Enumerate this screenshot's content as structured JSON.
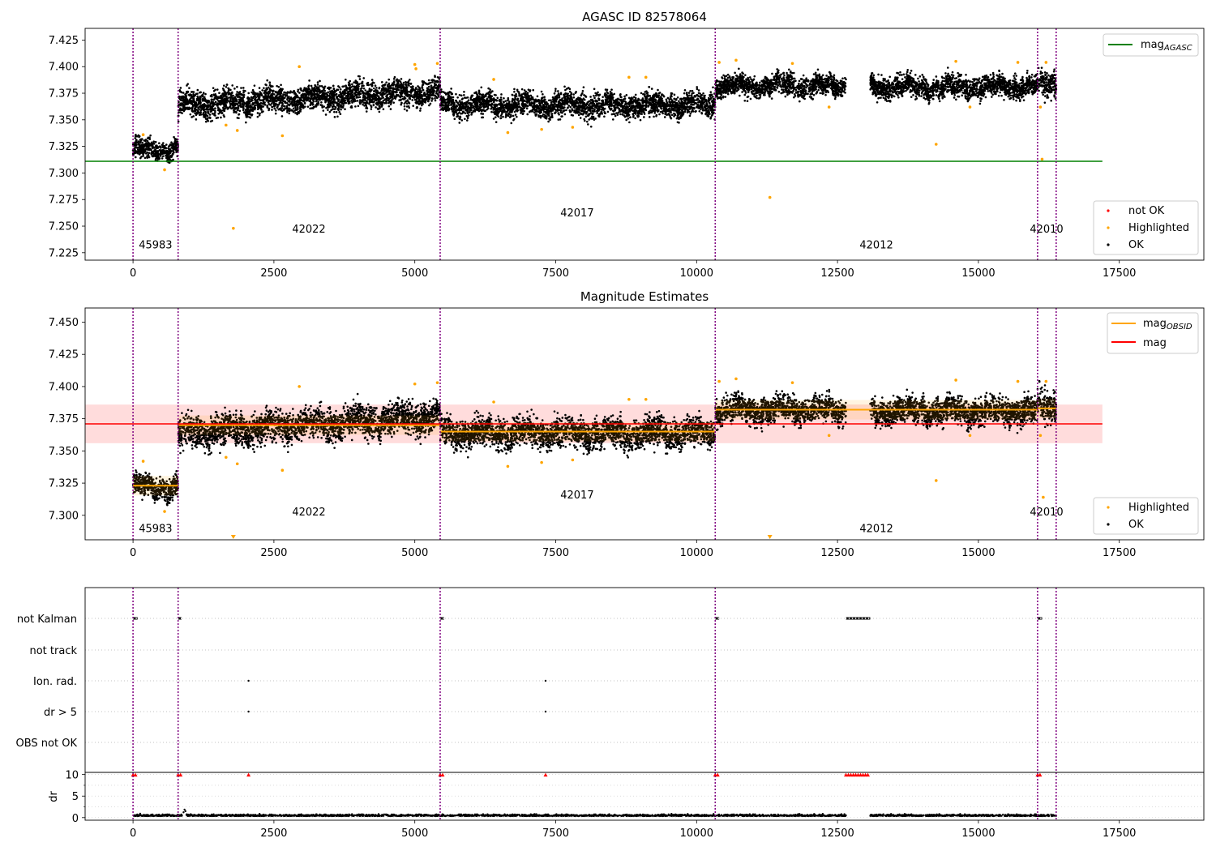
{
  "colors": {
    "agasc_line": "#008000",
    "mag_line": "#ff0000",
    "mag_band": "#ffc0c0",
    "obsid_line": "#ffa500",
    "ok": "#000000",
    "highlighted": "#ffa500",
    "not_ok": "#ff0000",
    "obsid_divider": "#800080"
  },
  "chart_data": [
    {
      "type": "scatter",
      "title": "AGASC ID 82578064",
      "xlim": [
        -850,
        19000
      ],
      "ylim": [
        7.218,
        7.436
      ],
      "x_ticks": [
        0,
        2500,
        5000,
        7500,
        10000,
        12500,
        15000,
        17500
      ],
      "y_ticks": [
        7.225,
        7.25,
        7.275,
        7.3,
        7.325,
        7.35,
        7.375,
        7.4,
        7.425
      ],
      "y_tick_labels": [
        "7.225",
        "7.250",
        "7.275",
        "7.300",
        "7.325",
        "7.350",
        "7.375",
        "7.400",
        "7.425"
      ],
      "grid": false,
      "mag_agasc": 7.311,
      "mag_agasc_x_range": [
        -850,
        17200
      ],
      "obsid_boundaries": [
        0,
        800,
        5450,
        10330,
        16050,
        16380
      ],
      "obsid_labels": [
        {
          "text": "45983",
          "x": 400,
          "y": 7.229
        },
        {
          "text": "42022",
          "x": 3120,
          "y": 7.244
        },
        {
          "text": "42017",
          "x": 7880,
          "y": 7.259
        },
        {
          "text": "42012",
          "x": 13190,
          "y": 7.229
        },
        {
          "text": "42010",
          "x": 16210,
          "y": 7.244
        }
      ],
      "segments": [
        {
          "x": [
            0,
            800
          ],
          "mean": 7.322,
          "spread": 0.008
        },
        {
          "x": [
            800,
            5450
          ],
          "mean_start": 7.364,
          "mean_end": 7.377,
          "spread": 0.011
        },
        {
          "x": [
            5450,
            10330
          ],
          "mean": 7.364,
          "spread": 0.01
        },
        {
          "x": [
            10330,
            12650
          ],
          "mean": 7.382,
          "spread": 0.009
        },
        {
          "x": [
            13080,
            16050
          ],
          "mean": 7.381,
          "spread": 0.009
        },
        {
          "x": [
            16050,
            16380
          ],
          "mean": 7.384,
          "spread": 0.011
        }
      ],
      "highlighted_points": [
        [
          180,
          7.336
        ],
        [
          560,
          7.303
        ],
        [
          1780,
          7.248
        ],
        [
          2650,
          7.335
        ],
        [
          1650,
          7.345
        ],
        [
          1850,
          7.34
        ],
        [
          2950,
          7.4
        ],
        [
          5000,
          7.402
        ],
        [
          5020,
          7.398
        ],
        [
          5400,
          7.403
        ],
        [
          6400,
          7.388
        ],
        [
          6650,
          7.338
        ],
        [
          7250,
          7.341
        ],
        [
          7800,
          7.343
        ],
        [
          8800,
          7.39
        ],
        [
          9100,
          7.39
        ],
        [
          10400,
          7.404
        ],
        [
          10700,
          7.406
        ],
        [
          11300,
          7.277
        ],
        [
          11700,
          7.403
        ],
        [
          12350,
          7.362
        ],
        [
          14250,
          7.327
        ],
        [
          14600,
          7.405
        ],
        [
          14850,
          7.362
        ],
        [
          15700,
          7.404
        ],
        [
          16100,
          7.362
        ],
        [
          16130,
          7.313
        ],
        [
          16200,
          7.404
        ]
      ],
      "legend_top": [
        {
          "label": "mag",
          "subscript": "AGASC"
        }
      ],
      "legend_bottom": [
        {
          "label": "not OK"
        },
        {
          "label": "Highlighted"
        },
        {
          "label": "OK"
        }
      ]
    },
    {
      "type": "scatter",
      "title": "Magnitude Estimates",
      "xlim": [
        -850,
        19000
      ],
      "ylim": [
        7.281,
        7.461
      ],
      "x_ticks": [
        0,
        2500,
        5000,
        7500,
        10000,
        12500,
        15000,
        17500
      ],
      "y_ticks": [
        7.3,
        7.325,
        7.35,
        7.375,
        7.4,
        7.425,
        7.45
      ],
      "y_tick_labels": [
        "7.300",
        "7.325",
        "7.350",
        "7.375",
        "7.400",
        "7.425",
        "7.450"
      ],
      "grid": false,
      "mag": 7.371,
      "mag_band": [
        7.356,
        7.386
      ],
      "mag_x_range": [
        -850,
        17200
      ],
      "obsid_mags": [
        {
          "x": [
            0,
            800
          ],
          "mag": 7.323
        },
        {
          "x": [
            800,
            5450
          ],
          "mag": 7.37
        },
        {
          "x": [
            5450,
            10330
          ],
          "mag": 7.365
        },
        {
          "x": [
            10330,
            16050
          ],
          "mag": 7.382
        },
        {
          "x": [
            16050,
            16380
          ],
          "mag": 7.383
        }
      ],
      "obsid_boundaries": [
        0,
        800,
        5450,
        10330,
        16050,
        16380
      ],
      "obsid_labels": [
        {
          "text": "45983",
          "x": 400,
          "y": 7.287
        },
        {
          "text": "42022",
          "x": 3120,
          "y": 7.3
        },
        {
          "text": "42017",
          "x": 7880,
          "y": 7.313
        },
        {
          "text": "42012",
          "x": 13190,
          "y": 7.287
        },
        {
          "text": "42010",
          "x": 16210,
          "y": 7.3
        }
      ],
      "highlighted_points": [
        [
          180,
          7.342
        ],
        [
          560,
          7.303
        ],
        [
          1650,
          7.345
        ],
        [
          1850,
          7.34
        ],
        [
          2650,
          7.335
        ],
        [
          2950,
          7.4
        ],
        [
          5000,
          7.402
        ],
        [
          5400,
          7.403
        ],
        [
          6400,
          7.388
        ],
        [
          6650,
          7.338
        ],
        [
          7250,
          7.341
        ],
        [
          7800,
          7.343
        ],
        [
          8800,
          7.39
        ],
        [
          9100,
          7.39
        ],
        [
          10400,
          7.404
        ],
        [
          10700,
          7.406
        ],
        [
          11700,
          7.403
        ],
        [
          12350,
          7.362
        ],
        [
          14250,
          7.327
        ],
        [
          14600,
          7.405
        ],
        [
          14850,
          7.362
        ],
        [
          15700,
          7.404
        ],
        [
          16100,
          7.362
        ],
        [
          16150,
          7.314
        ],
        [
          16200,
          7.404
        ]
      ],
      "off_scale_markers_x": [
        1780,
        11300
      ],
      "legend_top": [
        {
          "label": "mag",
          "subscript": "OBSID"
        },
        {
          "label": "mag"
        }
      ],
      "legend_bottom": [
        {
          "label": "Highlighted"
        },
        {
          "label": "OK"
        }
      ]
    },
    {
      "type": "scatter",
      "title": "",
      "xlim": [
        -850,
        19000
      ],
      "flag_rows": [
        "not Kalman",
        "not track",
        "Ion. rad.",
        "dr > 5",
        "OBS not OK"
      ],
      "flag_points": {
        "not Kalman": [
          [
            0,
            80
          ],
          [
            800,
            860
          ],
          [
            5450,
            5520
          ],
          [
            10330,
            10400
          ],
          [
            12650,
            13080
          ],
          [
            16050,
            16130
          ]
        ],
        "not track": [],
        "Ion. rad.": [
          [
            2050,
            2060
          ],
          [
            7320,
            7330
          ]
        ],
        "dr > 5": [
          [
            2050,
            2060
          ],
          [
            7320,
            7330
          ]
        ],
        "OBS not OK": []
      },
      "ylabel": "dr",
      "dr_ylim": [
        -0.6,
        10.5
      ],
      "dr_ticks": [
        0,
        5,
        10
      ],
      "dr_capped_at": 10,
      "dr_capped_x": [
        [
          0,
          80
        ],
        [
          800,
          860
        ],
        [
          2050,
          2060
        ],
        [
          5450,
          5520
        ],
        [
          7320,
          7330
        ],
        [
          10330,
          10400
        ],
        [
          12650,
          13080
        ],
        [
          16050,
          16130
        ]
      ],
      "x_ticks": [
        0,
        2500,
        5000,
        7500,
        10000,
        12500,
        15000,
        17500
      ]
    }
  ]
}
